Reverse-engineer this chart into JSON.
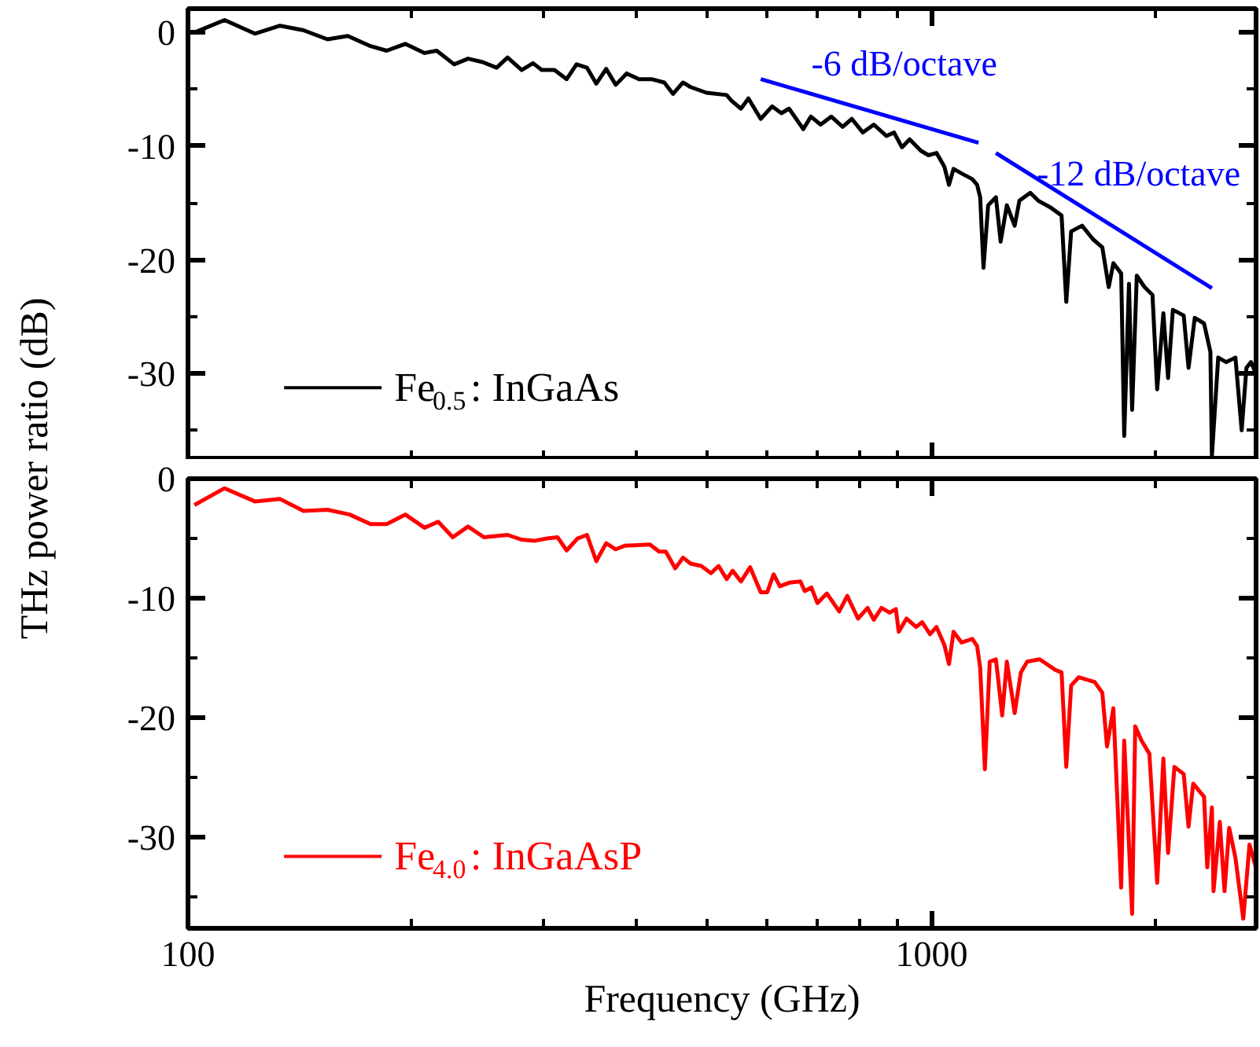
{
  "chart_data": [
    {
      "type": "line",
      "ylabel": "THz power ratio (dB)",
      "log": "x",
      "xlim": [
        100,
        2730
      ],
      "ylim": [
        -37.6,
        2.1
      ],
      "xticks": [
        100,
        {
          "value": 200,
          "label": null
        },
        {
          "value": 300,
          "label": null
        },
        {
          "value": 400,
          "label": null
        },
        {
          "value": 500,
          "label": null
        },
        {
          "value": 600,
          "label": null
        },
        {
          "value": 700,
          "label": null
        },
        {
          "value": 800,
          "label": null
        },
        {
          "value": 900,
          "label": null
        },
        1000,
        {
          "value": 2000,
          "label": null
        }
      ],
      "yticks": [
        -30,
        -20,
        -10,
        0,
        {
          "value": -35,
          "label": null
        },
        {
          "value": -25,
          "label": null
        },
        {
          "value": -15,
          "label": null
        },
        {
          "value": -5,
          "label": null
        }
      ],
      "tick_labels": "y",
      "legend": "bottom left",
      "annotations": [
        "-6 dB/octave",
        "-12 dB/octave"
      ],
      "series": [
        {
          "name": "Fe$_{0.5}$: InGaAs",
          "color": "#000000",
          "x": [
            102,
            112,
            123,
            133,
            143,
            154,
            164,
            176,
            185,
            196,
            208,
            216,
            228,
            238,
            249,
            260,
            269,
            281,
            291,
            299,
            311,
            323,
            333,
            344,
            354,
            365,
            376,
            389,
            404,
            420,
            437,
            449,
            463,
            474,
            498,
            530,
            538,
            554,
            567,
            589,
            610,
            628,
            643,
            672,
            688,
            709,
            733,
            759,
            781,
            808,
            836,
            869,
            890,
            912,
            934,
            967,
            990,
            1015,
            1040,
            1055,
            1070,
            1097,
            1134,
            1151,
            1162,
            1174,
            1191,
            1220,
            1238,
            1262,
            1293,
            1312,
            1357,
            1391,
            1445,
            1495,
            1517,
            1540,
            1593,
            1648,
            1696,
            1730,
            1755,
            1798,
            1815,
            1842,
            1860,
            1887,
            1933,
            1981,
            2010,
            2049,
            2079,
            2110,
            2182,
            2215,
            2258,
            2324,
            2370,
            2381,
            2428,
            2488,
            2561,
            2611,
            2650,
            2688,
            2728
          ],
          "values": [
            0.0,
            1.1,
            -0.1,
            0.6,
            0.2,
            -0.6,
            -0.3,
            -1.2,
            -1.6,
            -1.0,
            -1.8,
            -1.6,
            -2.8,
            -2.3,
            -2.6,
            -3.1,
            -2.2,
            -3.3,
            -2.7,
            -3.3,
            -3.3,
            -4.1,
            -2.8,
            -3.1,
            -4.5,
            -3.2,
            -4.6,
            -3.6,
            -4.1,
            -4.1,
            -4.4,
            -5.4,
            -4.4,
            -4.8,
            -5.3,
            -5.5,
            -6.0,
            -6.7,
            -5.8,
            -7.6,
            -6.5,
            -7.1,
            -6.7,
            -8.5,
            -7.4,
            -8.1,
            -7.4,
            -8.3,
            -7.6,
            -8.8,
            -8.1,
            -9.1,
            -8.8,
            -10.1,
            -9.4,
            -10.4,
            -10.8,
            -10.6,
            -11.8,
            -13.4,
            -12.0,
            -12.4,
            -12.9,
            -13.4,
            -14.5,
            -20.7,
            -15.2,
            -14.5,
            -18.4,
            -15.2,
            -17.0,
            -14.8,
            -14.1,
            -14.8,
            -15.4,
            -16.1,
            -23.7,
            -17.5,
            -17.0,
            -18.2,
            -18.9,
            -22.4,
            -20.3,
            -21.2,
            -35.5,
            -22.1,
            -33.2,
            -21.4,
            -22.4,
            -23.1,
            -31.4,
            -24.7,
            -30.4,
            -24.4,
            -24.9,
            -29.5,
            -25.1,
            -25.6,
            -28.1,
            -37.3,
            -28.6,
            -29.0,
            -28.6,
            -35.0,
            -29.5,
            -29.0,
            -30.0
          ]
        },
        {
          "color": "#0000ff",
          "x": [
            589,
            1156
          ],
          "values": [
            -4.1,
            -9.7
          ]
        },
        {
          "color": "#0000ff",
          "x": [
            1220,
            2381
          ],
          "values": [
            -10.6,
            -22.5
          ]
        }
      ]
    },
    {
      "type": "line",
      "xlabel": "Frequency (GHz)",
      "log": "x",
      "xlim": [
        100,
        2730
      ],
      "ylim": [
        -37.6,
        0
      ],
      "xticks": [
        100,
        {
          "value": 200,
          "label": null
        },
        {
          "value": 300,
          "label": null
        },
        {
          "value": 400,
          "label": null
        },
        {
          "value": 500,
          "label": null
        },
        {
          "value": 600,
          "label": null
        },
        {
          "value": 700,
          "label": null
        },
        {
          "value": 800,
          "label": null
        },
        {
          "value": 900,
          "label": null
        },
        1000,
        {
          "value": 2000,
          "label": null
        }
      ],
      "yticks": [
        -30,
        -20,
        -10,
        0,
        {
          "value": -35,
          "label": null
        },
        {
          "value": -25,
          "label": null
        },
        {
          "value": -15,
          "label": null
        },
        {
          "value": -5,
          "label": null
        }
      ],
      "legend": "bottom left",
      "series": [
        {
          "name": "Fe$_{4.0}$: InGaAsP",
          "color": "#ff0000",
          "x": [
            102,
            112,
            123,
            133,
            143,
            154,
            165,
            176,
            185,
            196,
            208,
            217,
            227,
            238,
            250,
            269,
            281,
            292,
            304,
            314,
            323,
            334,
            344,
            354,
            365,
            376,
            387,
            418,
            430,
            439,
            452,
            463,
            474,
            490,
            505,
            517,
            530,
            540,
            554,
            570,
            589,
            601,
            613,
            625,
            643,
            666,
            675,
            689,
            702,
            723,
            751,
            770,
            796,
            820,
            836,
            856,
            878,
            895,
            903,
            925,
            953,
            971,
            995,
            1015,
            1040,
            1055,
            1070,
            1097,
            1134,
            1151,
            1162,
            1179,
            1197,
            1220,
            1244,
            1262,
            1293,
            1318,
            1344,
            1397,
            1467,
            1495,
            1517,
            1540,
            1577,
            1656,
            1696,
            1721,
            1755,
            1798,
            1815,
            1860,
            1878,
            1915,
            1962,
            2010,
            2049,
            2079,
            2120,
            2182,
            2215,
            2247,
            2324,
            2347,
            2381,
            2393,
            2440,
            2476,
            2512,
            2561,
            2624,
            2675,
            2728
          ],
          "values": [
            -2.2,
            -0.8,
            -1.9,
            -1.7,
            -2.7,
            -2.6,
            -3.0,
            -3.8,
            -3.8,
            -3.0,
            -4.1,
            -3.6,
            -4.9,
            -4.0,
            -4.9,
            -4.7,
            -5.1,
            -5.2,
            -5.0,
            -4.9,
            -6.0,
            -5.0,
            -4.7,
            -6.9,
            -5.4,
            -5.9,
            -5.6,
            -5.5,
            -6.1,
            -6.1,
            -7.5,
            -6.6,
            -7.1,
            -7.3,
            -7.9,
            -7.3,
            -8.4,
            -7.7,
            -8.6,
            -7.4,
            -9.5,
            -9.5,
            -8.0,
            -9.0,
            -8.7,
            -8.6,
            -9.4,
            -9.1,
            -10.4,
            -9.6,
            -11.1,
            -9.8,
            -11.7,
            -10.8,
            -11.8,
            -10.8,
            -11.2,
            -10.9,
            -12.8,
            -11.7,
            -12.4,
            -12.0,
            -13.0,
            -12.4,
            -13.9,
            -15.5,
            -12.8,
            -13.7,
            -13.4,
            -14.0,
            -15.8,
            -24.3,
            -15.3,
            -15.1,
            -19.8,
            -15.3,
            -19.6,
            -16.2,
            -15.3,
            -15.1,
            -16.0,
            -16.2,
            -24.1,
            -17.3,
            -16.6,
            -17.0,
            -17.9,
            -22.4,
            -19.2,
            -34.2,
            -21.9,
            -36.4,
            -20.7,
            -21.9,
            -23.0,
            -33.8,
            -23.4,
            -31.3,
            -24.1,
            -24.7,
            -29.1,
            -25.5,
            -26.6,
            -32.5,
            -27.5,
            -34.5,
            -28.7,
            -34.5,
            -29.2,
            -31.7,
            -36.8,
            -30.6,
            -32.5
          ]
        }
      ]
    }
  ]
}
